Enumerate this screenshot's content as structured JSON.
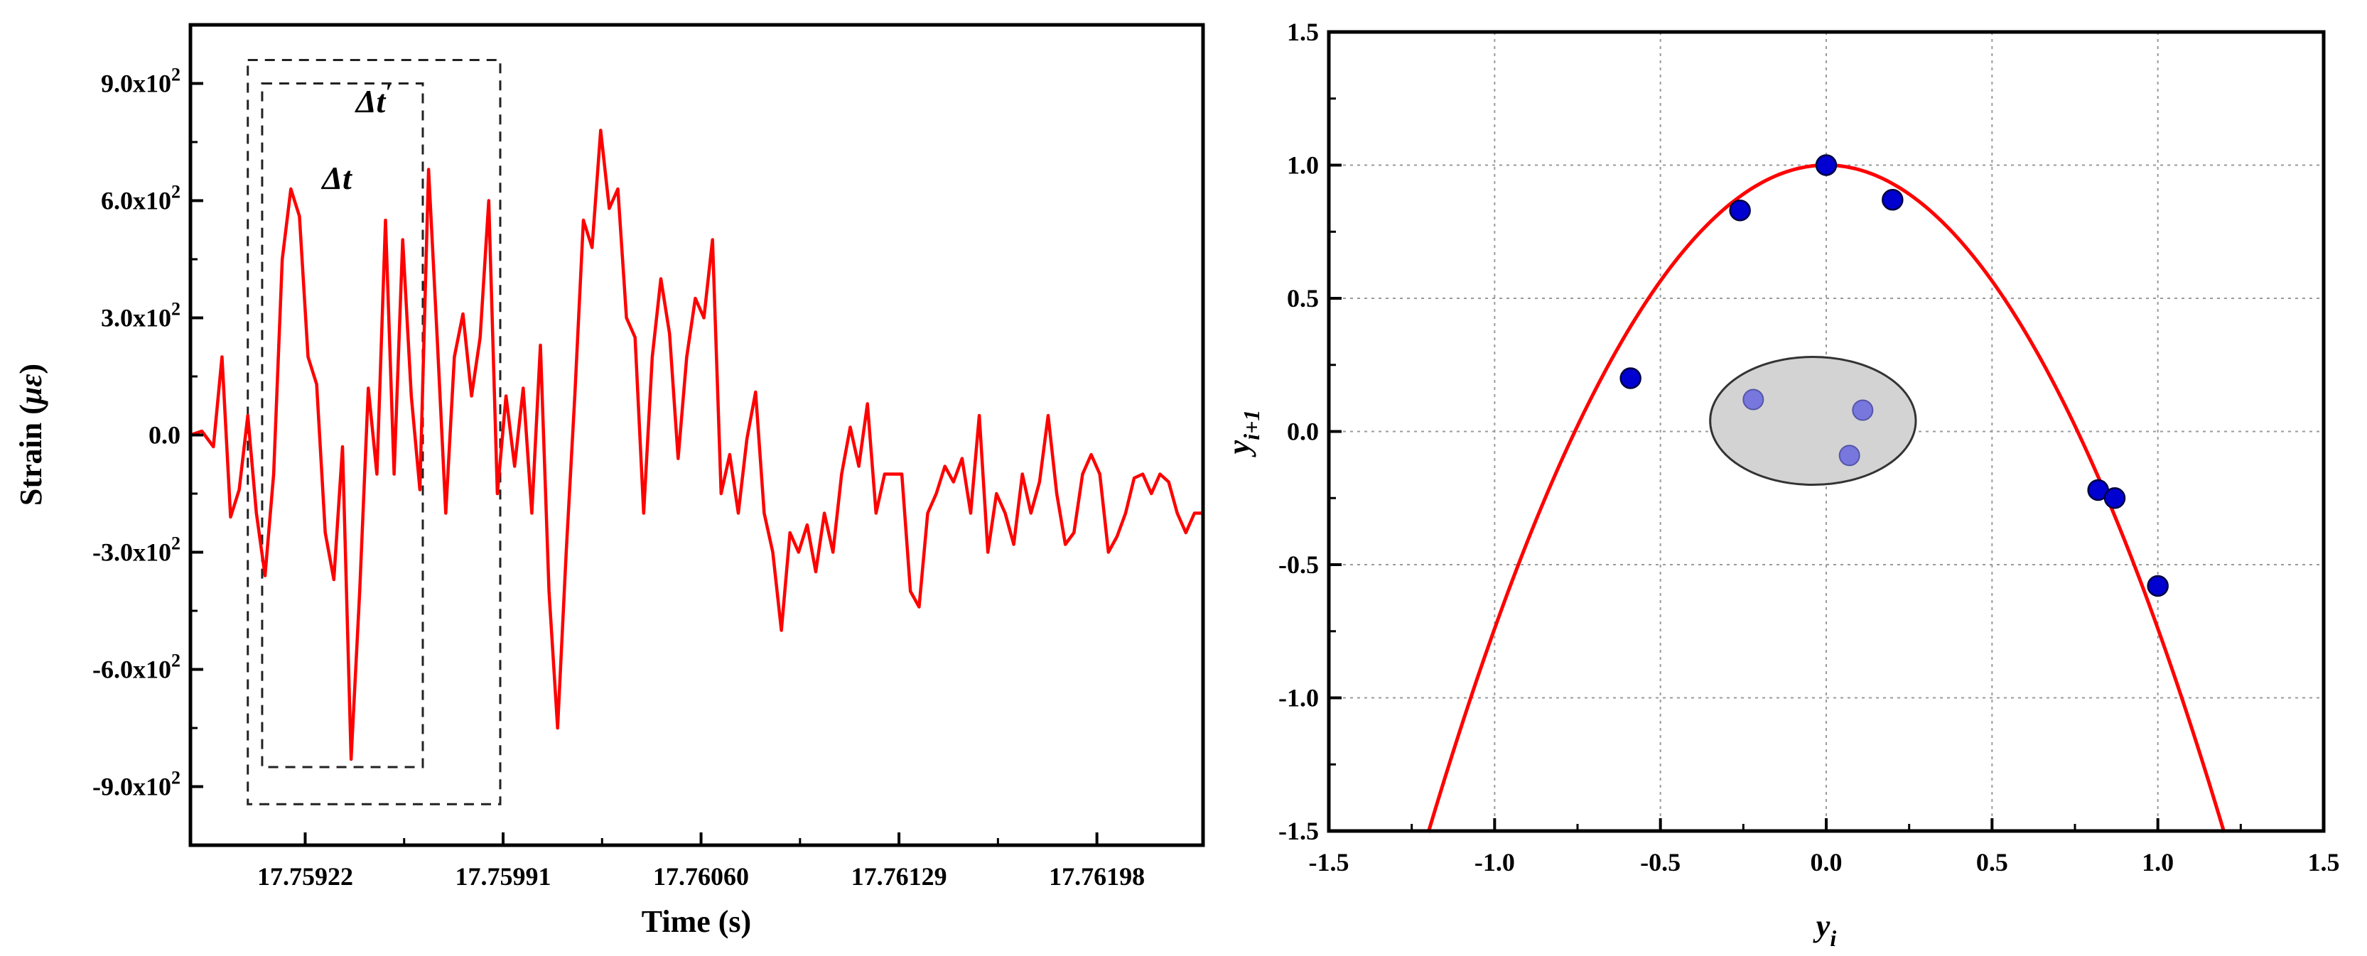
{
  "colors": {
    "line": "#ff0000",
    "point": "#0000d0",
    "cluster_point": "#7777dd",
    "cluster_fill": "#d3d3d3",
    "grid": "#9a9a9a"
  },
  "chart_data": [
    {
      "type": "line",
      "xlabel": "Time (s)",
      "ylabel_prefix": "Strain (",
      "ylabel_unit": "με",
      "ylabel_suffix": ")",
      "xlim": [
        17.75882,
        17.76235
      ],
      "ylim": [
        -1050,
        1050
      ],
      "x_ticks": [
        17.75922,
        17.75991,
        17.7606,
        17.76129,
        17.76198
      ],
      "x_tick_labels": [
        "17.75922",
        "17.75991",
        "17.76060",
        "17.76129",
        "17.76198"
      ],
      "y_ticks": [
        900,
        600,
        300,
        0,
        -300,
        -600,
        -900
      ],
      "y_tick_labels": [
        "9.0x10",
        "6.0x10",
        "3.0x10",
        "0.0",
        "-3.0x10",
        "-6.0x10",
        "-9.0x10"
      ],
      "y_tick_exponents": [
        "2",
        "2",
        "2",
        "",
        "2",
        "2",
        "2"
      ],
      "annotations": {
        "delta_t": "Δt",
        "delta_t_prime": "Δt",
        "prime": "′"
      },
      "boxes": [
        {
          "name": "delta-t",
          "x": [
            17.75907,
            17.75963
          ],
          "y": [
            -850,
            900
          ]
        },
        {
          "name": "delta-t-prime",
          "x": [
            17.75902,
            17.7599
          ],
          "y": [
            -945,
            960
          ]
        }
      ],
      "series": [
        {
          "x": [
            17.75882,
            17.75886,
            17.7589,
            17.75893,
            17.75896,
            17.75899,
            17.75902,
            17.75905,
            17.75908,
            17.75911,
            17.75914,
            17.75917,
            17.7592,
            17.75923,
            17.75926,
            17.75929,
            17.75932,
            17.75935,
            17.75938,
            17.75941,
            17.75944,
            17.75947,
            17.7595,
            17.75953,
            17.75956,
            17.75959,
            17.75962,
            17.75965,
            17.75968,
            17.75971,
            17.75974,
            17.75977,
            17.7598,
            17.75983,
            17.75986,
            17.75989,
            17.75992,
            17.75995,
            17.75998,
            17.76001,
            17.76004,
            17.76007,
            17.7601,
            17.76013,
            17.76016,
            17.76019,
            17.76022,
            17.76025,
            17.76028,
            17.76031,
            17.76034,
            17.76037,
            17.7604,
            17.76043,
            17.76046,
            17.76049,
            17.76052,
            17.76055,
            17.76058,
            17.76061,
            17.76064,
            17.76067,
            17.7607,
            17.76073,
            17.76076,
            17.76079,
            17.76082,
            17.76085,
            17.76088,
            17.76091,
            17.76094,
            17.76097,
            17.761,
            17.76103,
            17.76106,
            17.76109,
            17.76112,
            17.76115,
            17.76118,
            17.76121,
            17.76124,
            17.76127,
            17.7613,
            17.76133,
            17.76136,
            17.76139,
            17.76142,
            17.76145,
            17.76148,
            17.76151,
            17.76154,
            17.76157,
            17.7616,
            17.76163,
            17.76166,
            17.76169,
            17.76172,
            17.76175,
            17.76178,
            17.76181,
            17.76184,
            17.76187,
            17.7619,
            17.76193,
            17.76196,
            17.76199,
            17.76202,
            17.76205,
            17.76208,
            17.76211,
            17.76214,
            17.76217,
            17.7622,
            17.76223,
            17.76226,
            17.76229,
            17.76232,
            17.76235
          ],
          "y": [
            0,
            10,
            -30,
            200,
            -210,
            -140,
            50,
            -200,
            -360,
            -100,
            450,
            630,
            560,
            200,
            130,
            -250,
            -370,
            -30,
            -830,
            -400,
            120,
            -100,
            550,
            -100,
            500,
            100,
            -140,
            680,
            250,
            -200,
            200,
            310,
            100,
            250,
            600,
            -150,
            100,
            -80,
            120,
            -200,
            230,
            -400,
            -750,
            -300,
            100,
            550,
            480,
            780,
            580,
            630,
            300,
            250,
            -200,
            200,
            400,
            260,
            -60,
            200,
            350,
            300,
            500,
            -150,
            -50,
            -200,
            -10,
            110,
            -200,
            -300,
            -500,
            -250,
            -300,
            -230,
            -350,
            -200,
            -300,
            -100,
            20,
            -80,
            80,
            -200,
            -100,
            -100,
            -100,
            -400,
            -440,
            -200,
            -150,
            -80,
            -120,
            -60,
            -200,
            50,
            -300,
            -150,
            -200,
            -280,
            -100,
            -200,
            -120,
            50,
            -150,
            -280,
            -250,
            -100,
            -50,
            -100,
            -300,
            -260,
            -200,
            -110,
            -100,
            -150,
            -100,
            -120,
            -200,
            -250,
            -200,
            -200
          ]
        }
      ]
    },
    {
      "type": "scatter",
      "xlabel": "y",
      "xlabel_sub": "i",
      "ylabel": "y",
      "ylabel_sub": "i+1",
      "xlim": [
        -1.5,
        1.5
      ],
      "ylim": [
        -1.5,
        1.5
      ],
      "grid": true,
      "x_ticks": [
        -1.5,
        -1.0,
        -0.5,
        0.0,
        0.5,
        1.0,
        1.5
      ],
      "x_tick_labels": [
        "-1.5",
        "-1.0",
        "-0.5",
        "0.0",
        "0.5",
        "1.0",
        "1.5"
      ],
      "y_ticks": [
        1.5,
        1.0,
        0.5,
        0.0,
        -0.5,
        -1.0,
        -1.5
      ],
      "y_tick_labels": [
        "1.5",
        "1.0",
        "0.5",
        "0.0",
        "-0.5",
        "-1.0",
        "-1.5"
      ],
      "curve": {
        "type": "parabola",
        "a": 1.74,
        "b": 1.0,
        "x_range": [
          -1.2,
          1.2
        ]
      },
      "points": [
        {
          "x": -0.59,
          "y": 0.2
        },
        {
          "x": -0.26,
          "y": 0.83
        },
        {
          "x": 0.0,
          "y": 1.0
        },
        {
          "x": 0.2,
          "y": 0.87
        },
        {
          "x": 0.82,
          "y": -0.22
        },
        {
          "x": 0.87,
          "y": -0.25
        },
        {
          "x": 1.0,
          "y": -0.58
        }
      ],
      "cluster": {
        "center": [
          -0.04,
          0.04
        ],
        "radii": [
          0.31,
          0.24
        ],
        "points": [
          {
            "x": -0.22,
            "y": 0.12
          },
          {
            "x": 0.11,
            "y": 0.08
          },
          {
            "x": 0.07,
            "y": -0.09
          }
        ]
      }
    }
  ]
}
